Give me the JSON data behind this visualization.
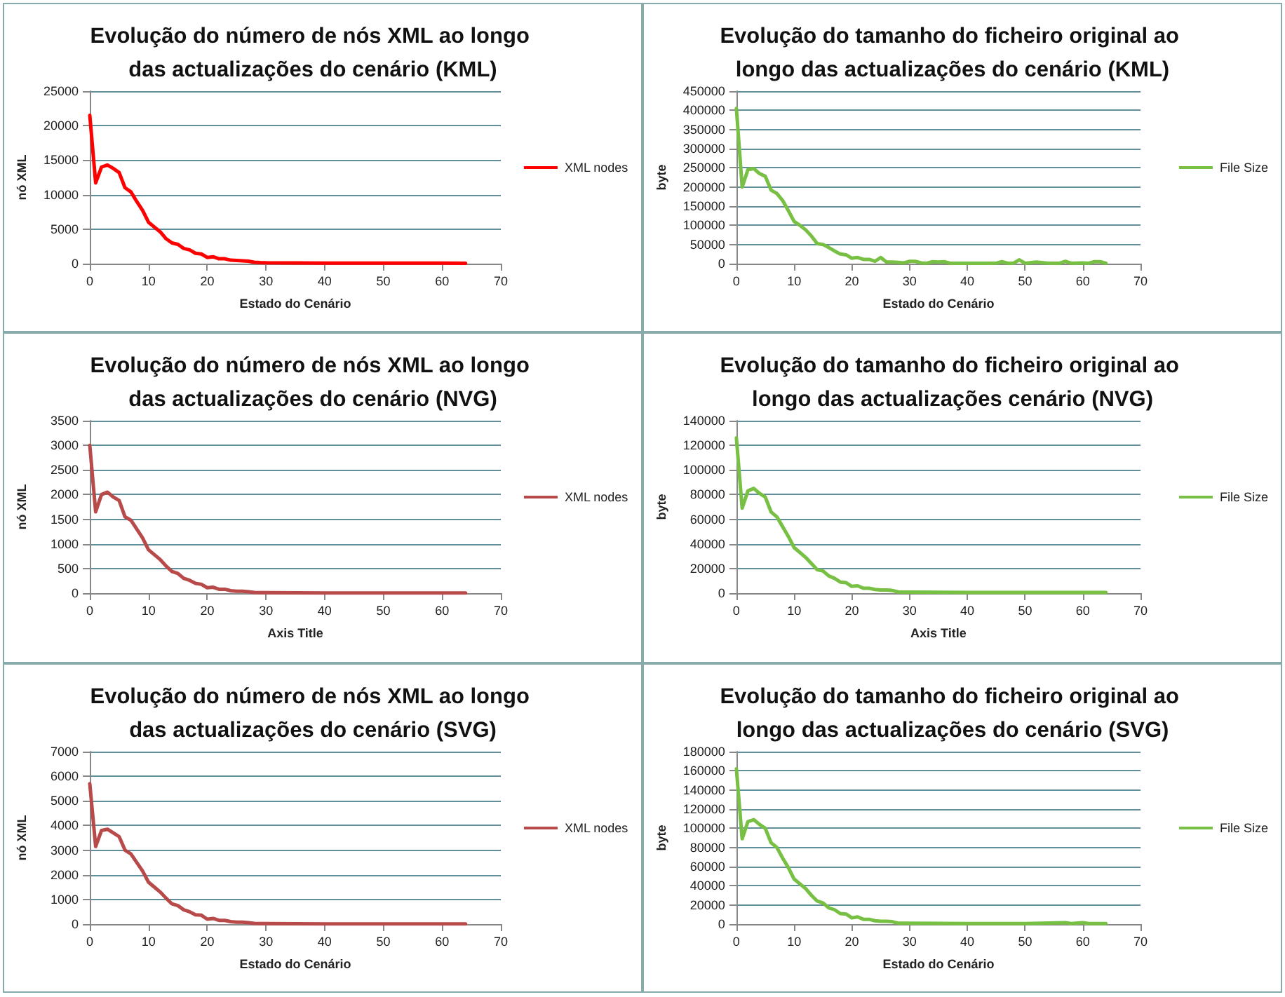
{
  "chart_data": [
    {
      "type": "line",
      "title": "Evolução do número de nós XML ao longo das actualizações do cenário (KML)",
      "xlabel": "Estado do Cenário",
      "ylabel": "nó XML",
      "xlim": [
        0,
        70
      ],
      "xticks": [
        0,
        10,
        20,
        30,
        40,
        50,
        60,
        70
      ],
      "ylim": [
        0,
        25000
      ],
      "yticks": [
        0,
        5000,
        10000,
        15000,
        20000,
        25000
      ],
      "grid": "y",
      "legend": "right",
      "marker": "none",
      "x": [
        0,
        1,
        2,
        3,
        4,
        5,
        6,
        7,
        8,
        9,
        10,
        11,
        12,
        13,
        14,
        15,
        16,
        17,
        18,
        19,
        20,
        21,
        22,
        23,
        24,
        25,
        26,
        27,
        28,
        29,
        30,
        35,
        40,
        45,
        50,
        55,
        60,
        64
      ],
      "series": [
        {
          "name": "XML nodes",
          "color": "#ff0000",
          "values": [
            21500,
            11700,
            14000,
            14300,
            13800,
            13200,
            11000,
            10400,
            9000,
            7700,
            6000,
            5300,
            4600,
            3600,
            3000,
            2800,
            2200,
            2000,
            1500,
            1400,
            900,
            1000,
            700,
            700,
            500,
            450,
            400,
            350,
            200,
            150,
            120,
            100,
            80,
            80,
            80,
            80,
            80,
            50
          ]
        }
      ]
    },
    {
      "type": "line",
      "title": "Evolução do tamanho do ficheiro original ao longo das actualizações do cenário (KML)",
      "xlabel": "Estado do Cenário",
      "ylabel": "byte",
      "xlim": [
        0,
        70
      ],
      "xticks": [
        0,
        10,
        20,
        30,
        40,
        50,
        60,
        70
      ],
      "ylim": [
        0,
        450000
      ],
      "yticks": [
        0,
        50000,
        100000,
        150000,
        200000,
        250000,
        300000,
        350000,
        400000,
        450000
      ],
      "grid": "y",
      "legend": "right",
      "marker": "none",
      "x": [
        0,
        1,
        2,
        3,
        4,
        5,
        6,
        7,
        8,
        9,
        10,
        11,
        12,
        13,
        14,
        15,
        16,
        17,
        18,
        19,
        20,
        21,
        22,
        23,
        24,
        25,
        26,
        27,
        28,
        29,
        30,
        31,
        32,
        33,
        34,
        35,
        36,
        37,
        40,
        45,
        46,
        47,
        48,
        49,
        50,
        52,
        54,
        56,
        57,
        58,
        60,
        61,
        62,
        63,
        64
      ],
      "series": [
        {
          "name": "File Size",
          "color": "#77c043",
          "values": [
            405000,
            200000,
            245000,
            248000,
            235000,
            228000,
            192000,
            183000,
            165000,
            138000,
            110000,
            100000,
            88000,
            72000,
            52000,
            50000,
            42000,
            33000,
            25000,
            23000,
            14000,
            16000,
            11000,
            11000,
            6000,
            16000,
            4000,
            4000,
            3000,
            2000,
            6000,
            6000,
            2000,
            1000,
            5000,
            4000,
            5000,
            1000,
            1000,
            1000,
            5000,
            1000,
            1000,
            10000,
            1000,
            4000,
            1000,
            1000,
            6000,
            1000,
            2000,
            1000,
            5000,
            5000,
            1000
          ]
        }
      ]
    },
    {
      "type": "line",
      "title": "Evolução do número de nós XML ao longo das actualizações do cenário (NVG)",
      "xlabel": "Axis Title",
      "ylabel": "nó XML",
      "xlim": [
        0,
        70
      ],
      "xticks": [
        0,
        10,
        20,
        30,
        40,
        50,
        60,
        70
      ],
      "ylim": [
        0,
        3500
      ],
      "yticks": [
        0,
        500,
        1000,
        1500,
        2000,
        2500,
        3000,
        3500
      ],
      "grid": "y",
      "legend": "right",
      "marker": "none",
      "x": [
        0,
        1,
        2,
        3,
        4,
        5,
        6,
        7,
        8,
        9,
        10,
        11,
        12,
        13,
        14,
        15,
        16,
        17,
        18,
        19,
        20,
        21,
        22,
        23,
        24,
        25,
        26,
        27,
        28,
        30,
        40,
        50,
        64
      ],
      "series": [
        {
          "name": "XML nodes",
          "color": "#b84a4a",
          "values": [
            3000,
            1650,
            2000,
            2050,
            1950,
            1880,
            1550,
            1480,
            1300,
            1120,
            880,
            780,
            680,
            550,
            440,
            400,
            300,
            260,
            200,
            180,
            110,
            120,
            80,
            80,
            50,
            40,
            40,
            30,
            15,
            10,
            5,
            5,
            5
          ]
        }
      ]
    },
    {
      "type": "line",
      "title": "Evolução do tamanho do ficheiro original ao longo das actualizações cenário (NVG)",
      "xlabel": "Axis Title",
      "ylabel": "byte",
      "xlim": [
        0,
        70
      ],
      "xticks": [
        0,
        10,
        20,
        30,
        40,
        50,
        60,
        70
      ],
      "ylim": [
        0,
        140000
      ],
      "yticks": [
        0,
        20000,
        40000,
        60000,
        80000,
        100000,
        120000,
        140000
      ],
      "grid": "y",
      "legend": "right",
      "marker": "none",
      "x": [
        0,
        1,
        2,
        3,
        4,
        5,
        6,
        7,
        8,
        9,
        10,
        11,
        12,
        13,
        14,
        15,
        16,
        17,
        18,
        19,
        20,
        21,
        22,
        23,
        24,
        25,
        26,
        27,
        28,
        30,
        40,
        50,
        64
      ],
      "series": [
        {
          "name": "File Size",
          "color": "#77c043",
          "values": [
            126000,
            69000,
            83000,
            85000,
            81000,
            78000,
            66000,
            62000,
            54000,
            46000,
            37000,
            33000,
            29000,
            24000,
            19000,
            18000,
            14000,
            12000,
            9000,
            8500,
            5500,
            6000,
            4000,
            4000,
            3000,
            2500,
            2500,
            2200,
            1000,
            800,
            500,
            500,
            500
          ]
        }
      ]
    },
    {
      "type": "line",
      "title": "Evolução do número de nós XML ao longo das actualizações do cenário (SVG)",
      "xlabel": "Estado do Cenário",
      "ylabel": "nó XML",
      "xlim": [
        0,
        70
      ],
      "xticks": [
        0,
        10,
        20,
        30,
        40,
        50,
        60,
        70
      ],
      "ylim": [
        0,
        7000
      ],
      "yticks": [
        0,
        1000,
        2000,
        3000,
        4000,
        5000,
        6000,
        7000
      ],
      "grid": "y",
      "legend": "right",
      "marker": "none",
      "x": [
        0,
        1,
        2,
        3,
        4,
        5,
        6,
        7,
        8,
        9,
        10,
        11,
        12,
        13,
        14,
        15,
        16,
        17,
        18,
        19,
        20,
        21,
        22,
        23,
        24,
        25,
        26,
        27,
        28,
        30,
        40,
        50,
        64
      ],
      "series": [
        {
          "name": "XML nodes",
          "color": "#b84a4a",
          "values": [
            5700,
            3150,
            3800,
            3850,
            3700,
            3550,
            3000,
            2850,
            2500,
            2150,
            1700,
            1500,
            1300,
            1050,
            820,
            750,
            580,
            500,
            380,
            360,
            200,
            230,
            150,
            150,
            100,
            80,
            80,
            60,
            30,
            20,
            10,
            10,
            10
          ]
        }
      ]
    },
    {
      "type": "line",
      "title": "Evolução do tamanho do ficheiro original ao longo das actualizações do cenário (SVG)",
      "xlabel": "Estado do Cenário",
      "ylabel": "byte",
      "xlim": [
        0,
        70
      ],
      "xticks": [
        0,
        10,
        20,
        30,
        40,
        50,
        60,
        70
      ],
      "ylim": [
        0,
        180000
      ],
      "yticks": [
        0,
        20000,
        40000,
        60000,
        80000,
        100000,
        120000,
        140000,
        160000,
        180000
      ],
      "grid": "y",
      "legend": "right",
      "marker": "none",
      "x": [
        0,
        1,
        2,
        3,
        4,
        5,
        6,
        7,
        8,
        9,
        10,
        11,
        12,
        13,
        14,
        15,
        16,
        17,
        18,
        19,
        20,
        21,
        22,
        23,
        24,
        25,
        26,
        27,
        28,
        30,
        40,
        50,
        57,
        58,
        60,
        61,
        64
      ],
      "series": [
        {
          "name": "File Size",
          "color": "#77c043",
          "values": [
            162000,
            89000,
            107000,
            109000,
            104000,
            100000,
            85000,
            80000,
            69000,
            59000,
            47000,
            42000,
            37000,
            30000,
            24000,
            22000,
            17000,
            15000,
            11000,
            10500,
            6500,
            7500,
            5000,
            5000,
            3500,
            3000,
            3000,
            2500,
            1000,
            1000,
            600,
            600,
            1500,
            600,
            1500,
            600,
            600
          ]
        }
      ]
    }
  ]
}
